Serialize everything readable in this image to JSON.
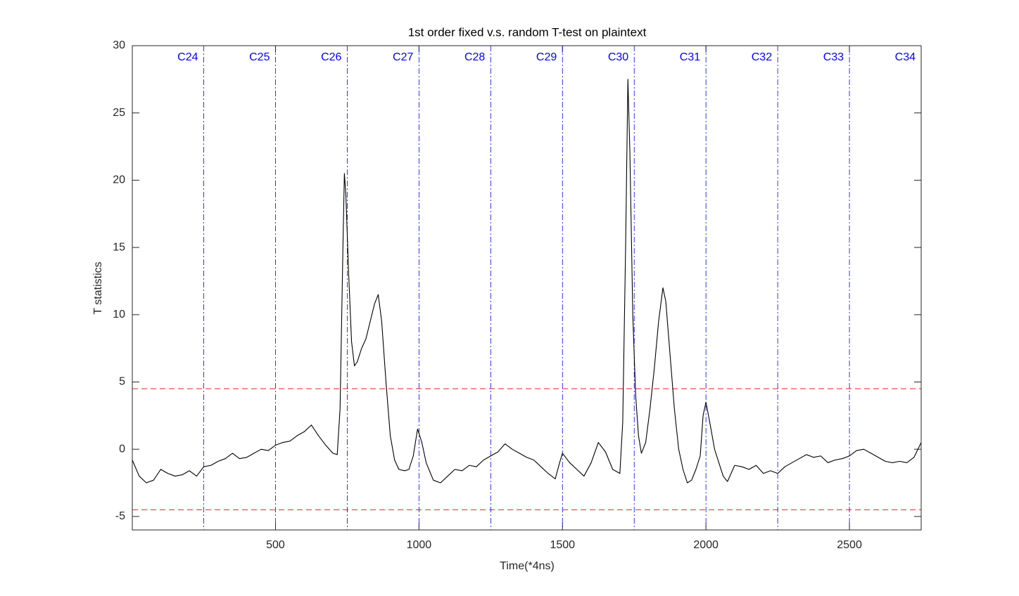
{
  "chart_data": {
    "type": "line",
    "title": "1st order fixed v.s. random T-test on plaintext",
    "xlabel": "Time(*4ns)",
    "ylabel": "T statistics",
    "color": "#000000",
    "x": [
      1,
      25,
      50,
      75,
      100,
      125,
      150,
      175,
      200,
      225,
      250,
      275,
      300,
      325,
      350,
      375,
      400,
      425,
      450,
      475,
      500,
      525,
      550,
      575,
      600,
      625,
      650,
      675,
      700,
      715,
      725,
      735,
      740,
      745,
      755,
      765,
      775,
      785,
      800,
      815,
      830,
      845,
      858,
      870,
      885,
      900,
      915,
      930,
      950,
      965,
      980,
      995,
      1010,
      1025,
      1050,
      1075,
      1100,
      1125,
      1150,
      1175,
      1200,
      1225,
      1250,
      1275,
      1300,
      1325,
      1350,
      1375,
      1400,
      1425,
      1450,
      1475,
      1490,
      1500,
      1525,
      1550,
      1575,
      1600,
      1625,
      1650,
      1675,
      1700,
      1710,
      1720,
      1728,
      1735,
      1745,
      1755,
      1765,
      1775,
      1790,
      1805,
      1820,
      1835,
      1850,
      1860,
      1875,
      1890,
      1905,
      1920,
      1935,
      1950,
      1965,
      1980,
      1990,
      2000,
      2015,
      2030,
      2045,
      2060,
      2075,
      2100,
      2125,
      2150,
      2175,
      2200,
      2225,
      2250,
      2275,
      2300,
      2325,
      2350,
      2375,
      2400,
      2425,
      2450,
      2475,
      2500,
      2525,
      2550,
      2575,
      2600,
      2625,
      2650,
      2675,
      2700,
      2725,
      2750
    ],
    "values": [
      -0.8,
      -2.0,
      -2.5,
      -2.3,
      -1.5,
      -1.8,
      -2.0,
      -1.9,
      -1.6,
      -2.0,
      -1.3,
      -1.2,
      -0.9,
      -0.7,
      -0.3,
      -0.7,
      -0.6,
      -0.3,
      0.0,
      -0.1,
      0.3,
      0.5,
      0.6,
      1.0,
      1.3,
      1.8,
      1.0,
      0.3,
      -0.3,
      -0.4,
      3.0,
      15,
      20.5,
      19,
      13,
      8,
      6.2,
      6.5,
      7.5,
      8.2,
      9.5,
      10.8,
      11.5,
      9.5,
      5,
      1,
      -0.8,
      -1.5,
      -1.6,
      -1.5,
      -0.5,
      1.5,
      0.5,
      -1.0,
      -2.3,
      -2.5,
      -2.0,
      -1.5,
      -1.6,
      -1.2,
      -1.3,
      -0.8,
      -0.5,
      -0.2,
      0.4,
      0.0,
      -0.3,
      -0.6,
      -0.8,
      -1.3,
      -1.8,
      -2.2,
      -1.0,
      -0.3,
      -1.0,
      -1.5,
      -2.0,
      -1.0,
      0.5,
      -0.2,
      -1.5,
      -1.8,
      2.0,
      15,
      27.5,
      22,
      10,
      4,
      1,
      -0.3,
      0.5,
      3,
      6,
      9.5,
      12,
      11,
      7,
      3,
      0,
      -1.5,
      -2.5,
      -2.3,
      -1.5,
      -0.5,
      2.5,
      3.5,
      1.8,
      0.0,
      -1.0,
      -2.0,
      -2.4,
      -1.2,
      -1.3,
      -1.5,
      -1.2,
      -1.8,
      -1.6,
      -1.8,
      -1.3,
      -1.0,
      -0.7,
      -0.4,
      -0.6,
      -0.5,
      -1.0,
      -0.8,
      -0.7,
      -0.5,
      -0.1,
      0.0,
      -0.3,
      -0.6,
      -0.9,
      -1.0,
      -0.9,
      -1.0,
      -0.6,
      0.5
    ],
    "xlim": [
      1,
      2750
    ],
    "ylim": [
      -6,
      30
    ],
    "xticks": [
      500,
      1000,
      1500,
      2000,
      2500
    ],
    "yticks": [
      -5,
      0,
      5,
      10,
      15,
      20,
      25,
      30
    ],
    "thresholds": [
      4.5,
      -4.5
    ],
    "threshold_color": "#e8383d",
    "markers": [
      {
        "value": 250,
        "label": "C24"
      },
      {
        "value": 500,
        "label": "C25"
      },
      {
        "value": 750,
        "label": "C26"
      },
      {
        "value": 1000,
        "label": "C27"
      },
      {
        "value": 1250,
        "label": "C28"
      },
      {
        "value": 1500,
        "label": "C29"
      },
      {
        "value": 1750,
        "label": "C30"
      },
      {
        "value": 2000,
        "label": "C31"
      },
      {
        "value": 2250,
        "label": "C32"
      },
      {
        "value": 2500,
        "label": "C33"
      },
      {
        "value": 2750,
        "label": "C34"
      }
    ],
    "marker_color": "#0000ff"
  }
}
